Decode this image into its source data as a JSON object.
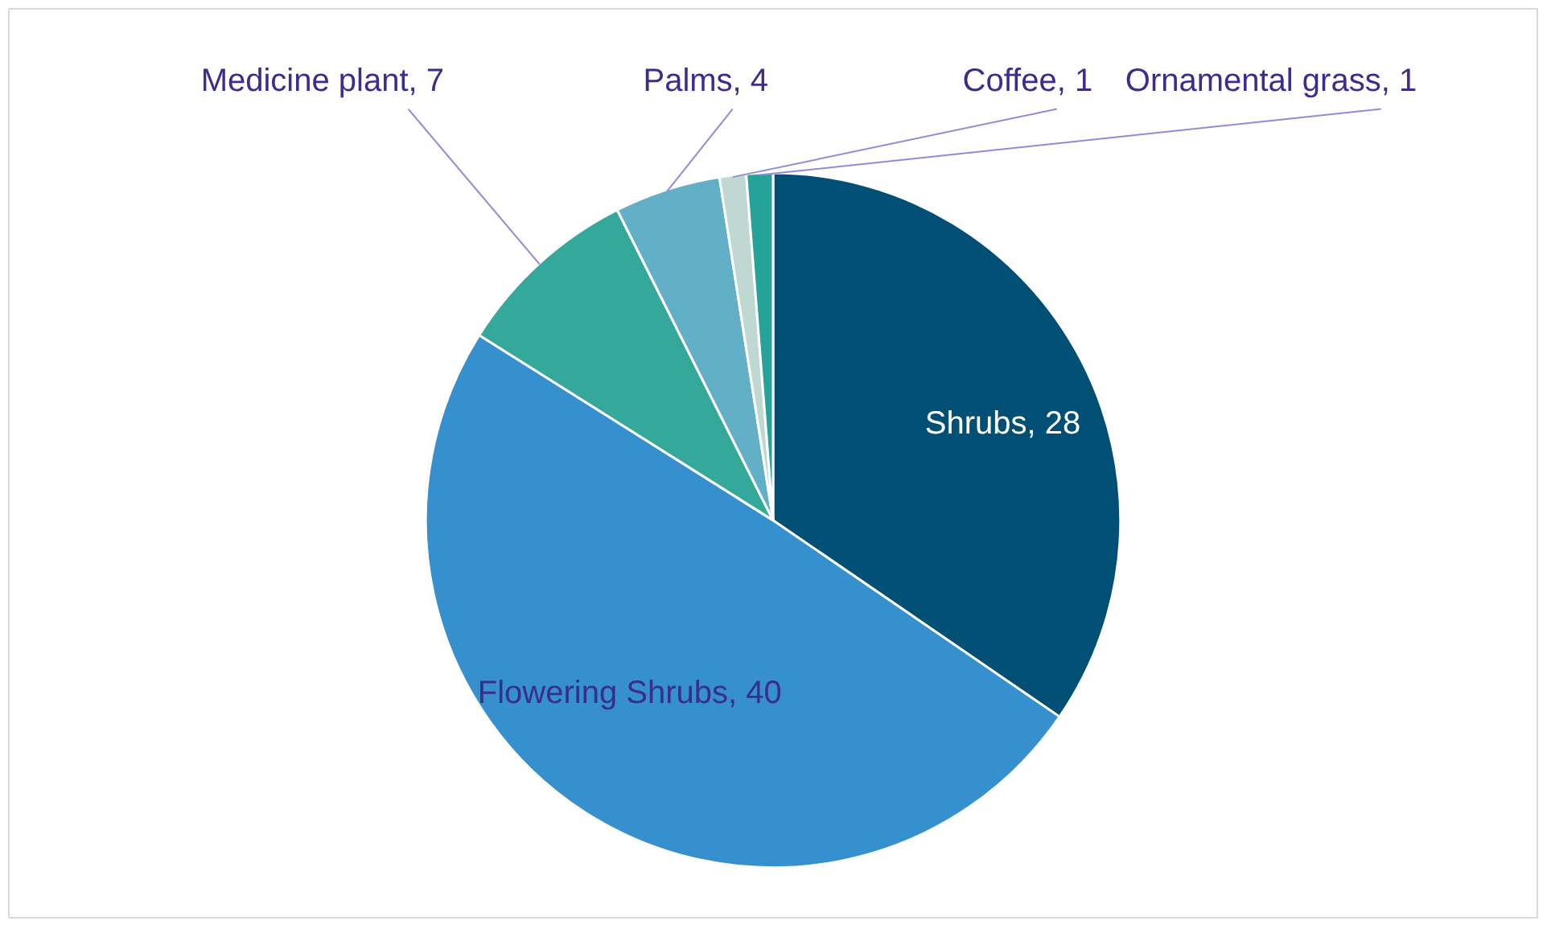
{
  "chart_data": {
    "type": "pie",
    "categories": [
      "Shrubs",
      "Flowering Shrubs",
      "Medicine plant",
      "Palms",
      "Coffee",
      "Ornamental grass"
    ],
    "values": [
      28,
      40,
      7,
      4,
      1,
      1
    ],
    "colors": [
      "#024f75",
      "#3590cd",
      "#33a89b",
      "#64afc8",
      "#bfd9d2",
      "#25a29a"
    ],
    "value_labels": [
      ", 28",
      ", 40",
      ", 7",
      ", 4",
      ", 1",
      ", 1"
    ]
  }
}
